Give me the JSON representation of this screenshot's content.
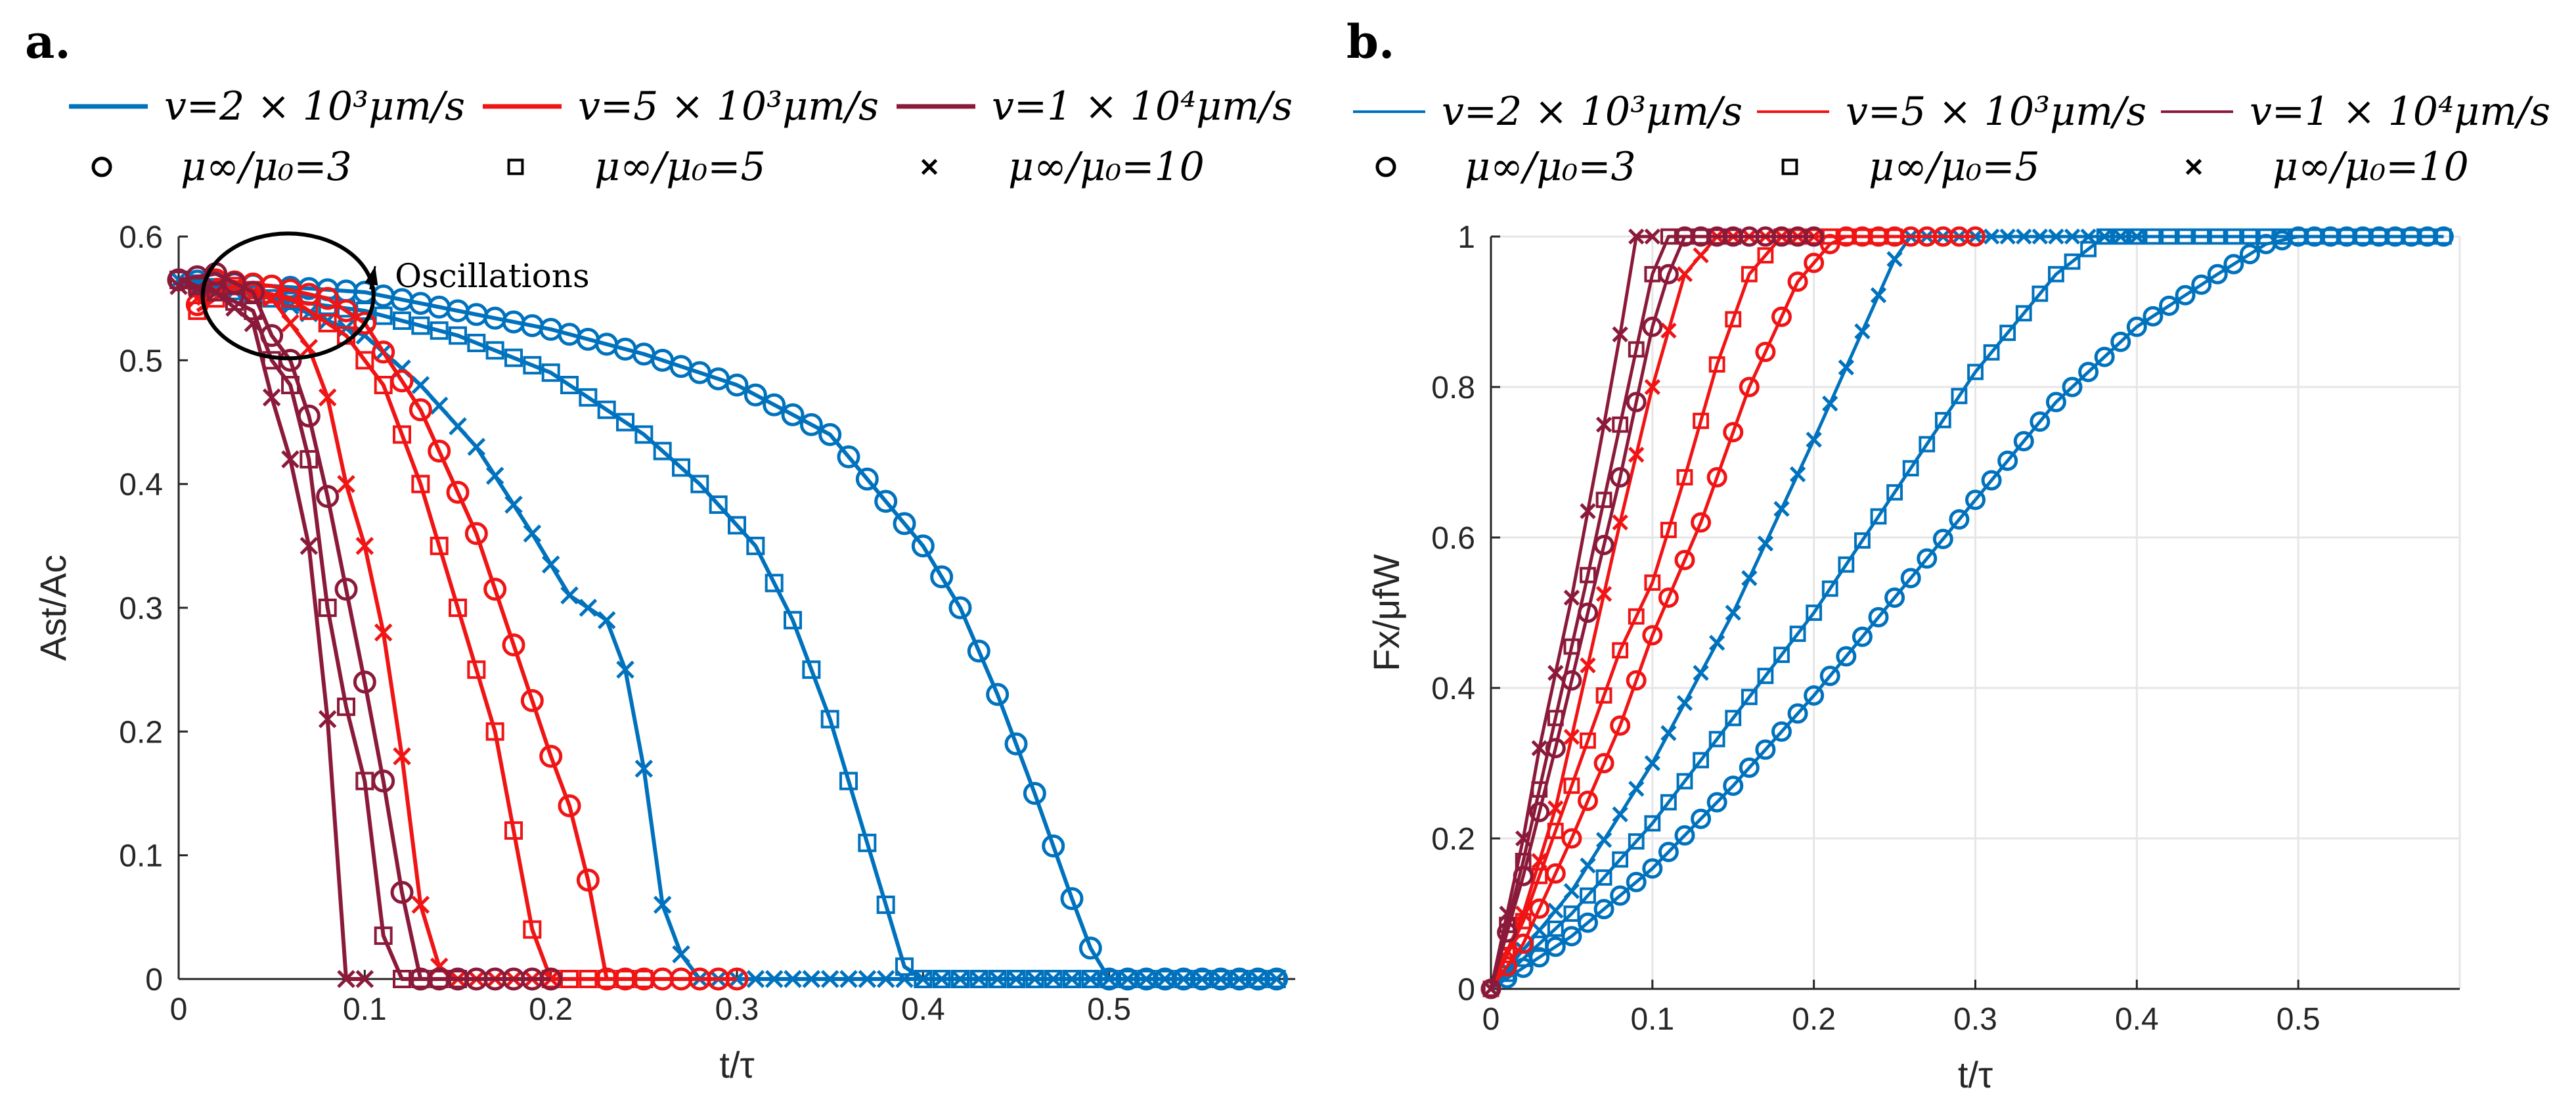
{
  "colors": {
    "blue": "#0072BD",
    "red": "#F01414",
    "darkred": "#8B1A3A",
    "grid": "#E6E6E6",
    "axis": "#262626"
  },
  "legend": {
    "speed": [
      {
        "label": "v=2 × 10³μm/s",
        "color": "blue"
      },
      {
        "label": "v=5 × 10³μm/s",
        "color": "red"
      },
      {
        "label": "v=1 × 10⁴μm/s",
        "color": "darkred"
      }
    ],
    "ratio": [
      {
        "label": "μ∞/μ₀=3",
        "marker": "circle"
      },
      {
        "label": "μ∞/μ₀=5",
        "marker": "square"
      },
      {
        "label": "μ∞/μ₀=10",
        "marker": "cross"
      }
    ]
  },
  "chart_data": [
    {
      "panel": "a.",
      "type": "line",
      "xlabel": "t/τ",
      "ylabel": "Ast/Ac",
      "xlim": [
        0,
        0.6
      ],
      "ylim": [
        0,
        0.6
      ],
      "xticks": [
        0,
        0.1,
        0.2,
        0.3,
        0.4,
        0.5
      ],
      "yticks": [
        0,
        0.1,
        0.2,
        0.3,
        0.4,
        0.5,
        0.6
      ],
      "grid": false,
      "annotation": {
        "text": "Oscillations",
        "at": [
          0.05,
          0.56
        ],
        "text_at": [
          0.155,
          0.575
        ]
      },
      "series": [
        {
          "name": "v=2e3, ratio 3",
          "color": "blue",
          "marker": "circle",
          "x": [
            0,
            0.05,
            0.1,
            0.15,
            0.2,
            0.25,
            0.3,
            0.35,
            0.4,
            0.42,
            0.44,
            0.46,
            0.48,
            0.49,
            0.5,
            0.59
          ],
          "y": [
            0.565,
            0.56,
            0.555,
            0.54,
            0.525,
            0.505,
            0.48,
            0.44,
            0.35,
            0.3,
            0.23,
            0.15,
            0.065,
            0.025,
            0,
            0
          ]
        },
        {
          "name": "v=2e3, ratio 5",
          "color": "blue",
          "marker": "square",
          "x": [
            0,
            0.05,
            0.1,
            0.15,
            0.2,
            0.25,
            0.28,
            0.31,
            0.33,
            0.35,
            0.37,
            0.38,
            0.39,
            0.4,
            0.59
          ],
          "y": [
            0.565,
            0.55,
            0.54,
            0.52,
            0.49,
            0.44,
            0.4,
            0.35,
            0.29,
            0.21,
            0.11,
            0.06,
            0.01,
            0,
            0
          ]
        },
        {
          "name": "v=2e3, ratio 10",
          "color": "blue",
          "marker": "cross",
          "x": [
            0,
            0.05,
            0.1,
            0.13,
            0.16,
            0.19,
            0.21,
            0.23,
            0.24,
            0.25,
            0.26,
            0.27,
            0.28,
            0.3,
            0.59
          ],
          "y": [
            0.565,
            0.55,
            0.52,
            0.48,
            0.43,
            0.36,
            0.31,
            0.29,
            0.25,
            0.17,
            0.06,
            0.02,
            0,
            0,
            0
          ]
        },
        {
          "name": "v=5e3, ratio 3",
          "color": "red",
          "marker": "circle",
          "x": [
            0.01,
            0.02,
            0.05,
            0.08,
            0.1,
            0.13,
            0.16,
            0.18,
            0.2,
            0.21,
            0.22,
            0.23,
            0.3
          ],
          "y": [
            0.545,
            0.565,
            0.56,
            0.55,
            0.53,
            0.46,
            0.36,
            0.27,
            0.18,
            0.14,
            0.08,
            0,
            0
          ]
        },
        {
          "name": "v=5e3, ratio 5",
          "color": "red",
          "marker": "square",
          "x": [
            0.01,
            0.03,
            0.06,
            0.09,
            0.11,
            0.13,
            0.15,
            0.17,
            0.18,
            0.19,
            0.2,
            0.25
          ],
          "y": [
            0.54,
            0.56,
            0.55,
            0.52,
            0.48,
            0.4,
            0.3,
            0.2,
            0.12,
            0.04,
            0,
            0
          ]
        },
        {
          "name": "v=5e3, ratio 10",
          "color": "red",
          "marker": "cross",
          "x": [
            0.01,
            0.03,
            0.05,
            0.07,
            0.08,
            0.09,
            0.1,
            0.11,
            0.12,
            0.13,
            0.14,
            0.15,
            0.2
          ],
          "y": [
            0.55,
            0.56,
            0.55,
            0.51,
            0.47,
            0.4,
            0.35,
            0.28,
            0.18,
            0.06,
            0.01,
            0,
            0
          ]
        },
        {
          "name": "v=1e4, ratio 3",
          "color": "darkred",
          "marker": "circle",
          "x": [
            0,
            0.02,
            0.04,
            0.05,
            0.06,
            0.07,
            0.08,
            0.09,
            0.1,
            0.11,
            0.12,
            0.13,
            0.2
          ],
          "y": [
            0.565,
            0.57,
            0.555,
            0.52,
            0.5,
            0.455,
            0.39,
            0.315,
            0.24,
            0.16,
            0.07,
            0,
            0
          ]
        },
        {
          "name": "v=1e4, ratio 5",
          "color": "darkred",
          "marker": "square",
          "x": [
            0,
            0.02,
            0.04,
            0.05,
            0.06,
            0.07,
            0.08,
            0.09,
            0.1,
            0.11,
            0.12,
            0.15
          ],
          "y": [
            0.565,
            0.555,
            0.54,
            0.5,
            0.48,
            0.42,
            0.3,
            0.22,
            0.16,
            0.035,
            0,
            0
          ]
        },
        {
          "name": "v=1e4, ratio 10",
          "color": "darkred",
          "marker": "cross",
          "x": [
            0,
            0.02,
            0.04,
            0.05,
            0.06,
            0.07,
            0.08,
            0.09,
            0.1
          ],
          "y": [
            0.56,
            0.555,
            0.53,
            0.47,
            0.42,
            0.35,
            0.21,
            0,
            0
          ]
        }
      ]
    },
    {
      "panel": "b.",
      "type": "line",
      "xlabel": "t/τ",
      "ylabel": "Fx/μfW",
      "xlim": [
        0,
        0.6
      ],
      "ylim": [
        0,
        1
      ],
      "xticks": [
        0,
        0.1,
        0.2,
        0.3,
        0.4,
        0.5
      ],
      "yticks": [
        0,
        0.2,
        0.4,
        0.6,
        0.8,
        1
      ],
      "grid": true,
      "series": [
        {
          "name": "v=2e3, ratio 3",
          "color": "blue",
          "marker": "circle",
          "x": [
            0,
            0.05,
            0.1,
            0.15,
            0.2,
            0.25,
            0.3,
            0.35,
            0.4,
            0.45,
            0.48,
            0.5,
            0.59
          ],
          "y": [
            0,
            0.07,
            0.16,
            0.27,
            0.39,
            0.52,
            0.65,
            0.78,
            0.88,
            0.95,
            0.99,
            1,
            1
          ]
        },
        {
          "name": "v=2e3, ratio 5",
          "color": "blue",
          "marker": "square",
          "x": [
            0,
            0.05,
            0.1,
            0.15,
            0.2,
            0.25,
            0.3,
            0.35,
            0.38,
            0.4,
            0.59
          ],
          "y": [
            0,
            0.1,
            0.22,
            0.36,
            0.5,
            0.66,
            0.82,
            0.95,
            1,
            1,
            1
          ]
        },
        {
          "name": "v=2e3, ratio 10",
          "color": "blue",
          "marker": "cross",
          "x": [
            0,
            0.05,
            0.1,
            0.15,
            0.2,
            0.25,
            0.26,
            0.3,
            0.4
          ],
          "y": [
            0,
            0.13,
            0.3,
            0.5,
            0.73,
            0.97,
            1,
            1,
            1
          ]
        },
        {
          "name": "v=5e3, ratio 3",
          "color": "red",
          "marker": "circle",
          "x": [
            0,
            0.02,
            0.05,
            0.08,
            0.1,
            0.13,
            0.16,
            0.19,
            0.21,
            0.22,
            0.3
          ],
          "y": [
            0,
            0.06,
            0.2,
            0.35,
            0.47,
            0.62,
            0.8,
            0.94,
            0.99,
            1,
            1
          ]
        },
        {
          "name": "v=5e3, ratio 5",
          "color": "red",
          "marker": "square",
          "x": [
            0,
            0.02,
            0.05,
            0.08,
            0.1,
            0.12,
            0.14,
            0.16,
            0.18,
            0.2,
            0.25
          ],
          "y": [
            0,
            0.09,
            0.27,
            0.45,
            0.54,
            0.68,
            0.83,
            0.95,
            1,
            1,
            1
          ]
        },
        {
          "name": "v=5e3, ratio 10",
          "color": "red",
          "marker": "cross",
          "x": [
            0,
            0.02,
            0.04,
            0.06,
            0.08,
            0.1,
            0.12,
            0.14,
            0.2
          ],
          "y": [
            0,
            0.1,
            0.24,
            0.43,
            0.62,
            0.8,
            0.95,
            1,
            1
          ]
        },
        {
          "name": "v=1e4, ratio 3",
          "color": "darkred",
          "marker": "circle",
          "x": [
            0,
            0.02,
            0.04,
            0.06,
            0.08,
            0.1,
            0.11,
            0.12,
            0.2
          ],
          "y": [
            0,
            0.15,
            0.32,
            0.5,
            0.68,
            0.88,
            0.95,
            1,
            1
          ]
        },
        {
          "name": "v=1e4, ratio 5",
          "color": "darkred",
          "marker": "square",
          "x": [
            0,
            0.02,
            0.04,
            0.06,
            0.08,
            0.1,
            0.11,
            0.15
          ],
          "y": [
            0,
            0.17,
            0.36,
            0.55,
            0.75,
            0.95,
            1,
            1
          ]
        },
        {
          "name": "v=1e4, ratio 10",
          "color": "darkred",
          "marker": "cross",
          "x": [
            0,
            0.01,
            0.02,
            0.03,
            0.05,
            0.07,
            0.08,
            0.09,
            0.1
          ],
          "y": [
            0,
            0.1,
            0.2,
            0.32,
            0.52,
            0.75,
            0.87,
            1,
            1
          ]
        }
      ]
    }
  ]
}
